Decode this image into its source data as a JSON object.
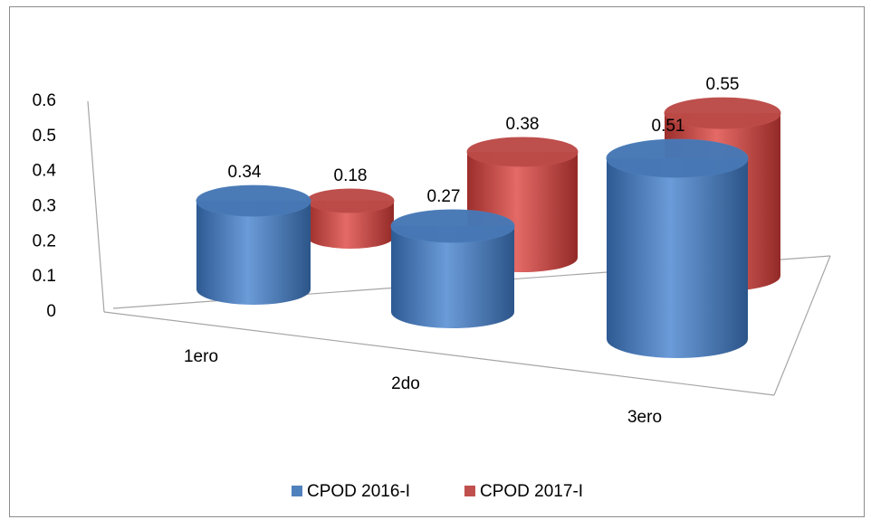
{
  "chart_data": {
    "type": "bar3d_cylinder",
    "categories": [
      "1ero",
      "2do",
      "3ero"
    ],
    "series": [
      {
        "name": "CPOD 2016-I",
        "color": "#4f81bd",
        "values": [
          0.34,
          0.27,
          0.51
        ]
      },
      {
        "name": "CPOD 2017-I",
        "color": "#c0504d",
        "values": [
          0.18,
          0.38,
          0.55
        ]
      }
    ],
    "ylim": [
      0,
      0.6
    ],
    "yticks": [
      0,
      0.1,
      0.2,
      0.3,
      0.4,
      0.5,
      0.6
    ],
    "grid": false,
    "legend": "bottom"
  }
}
